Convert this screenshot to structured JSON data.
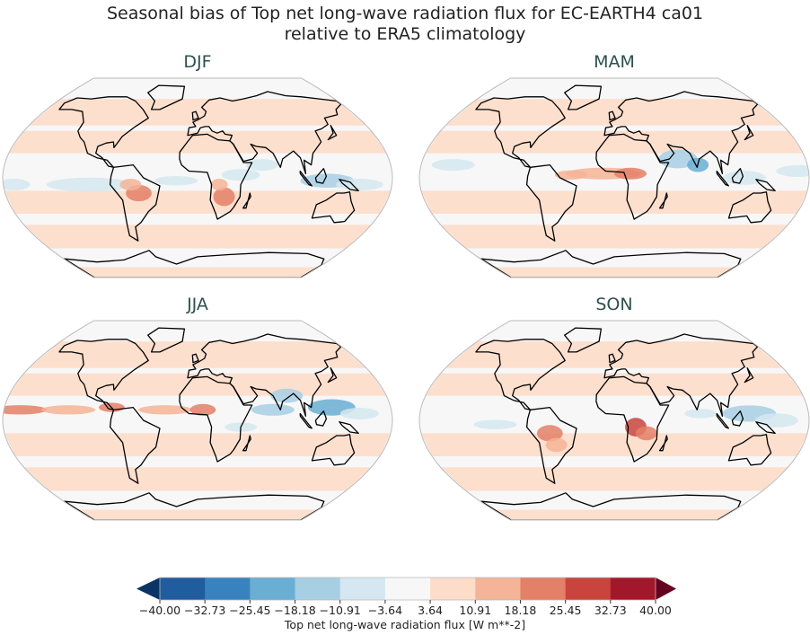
{
  "figure": {
    "title_line1": "Seasonal bias of Top net long-wave radiation flux for EC-EARTH4 ca01",
    "title_line2": "relative to ERA5 climatology"
  },
  "panels": [
    {
      "label": "DJF"
    },
    {
      "label": "MAM"
    },
    {
      "label": "JJA"
    },
    {
      "label": "SON"
    }
  ],
  "colorbar": {
    "label": "Top net long-wave radiation flux [W m**-2]",
    "ticks": [
      "−40.00",
      "−32.73",
      "−25.45",
      "−18.18",
      "−10.91",
      "−3.64",
      "3.64",
      "10.91",
      "18.18",
      "25.45",
      "32.73",
      "40.00"
    ],
    "colors": [
      "#1f5d9e",
      "#3883bf",
      "#6aaed4",
      "#a7cfe4",
      "#d5e7f0",
      "#f7f7f7",
      "#fddcc9",
      "#f5b497",
      "#e48067",
      "#c9443d",
      "#a3172b"
    ],
    "extend_low_color": "#0b3363",
    "extend_high_color": "#670020",
    "range": [
      -40,
      40
    ],
    "extend": "both"
  }
}
